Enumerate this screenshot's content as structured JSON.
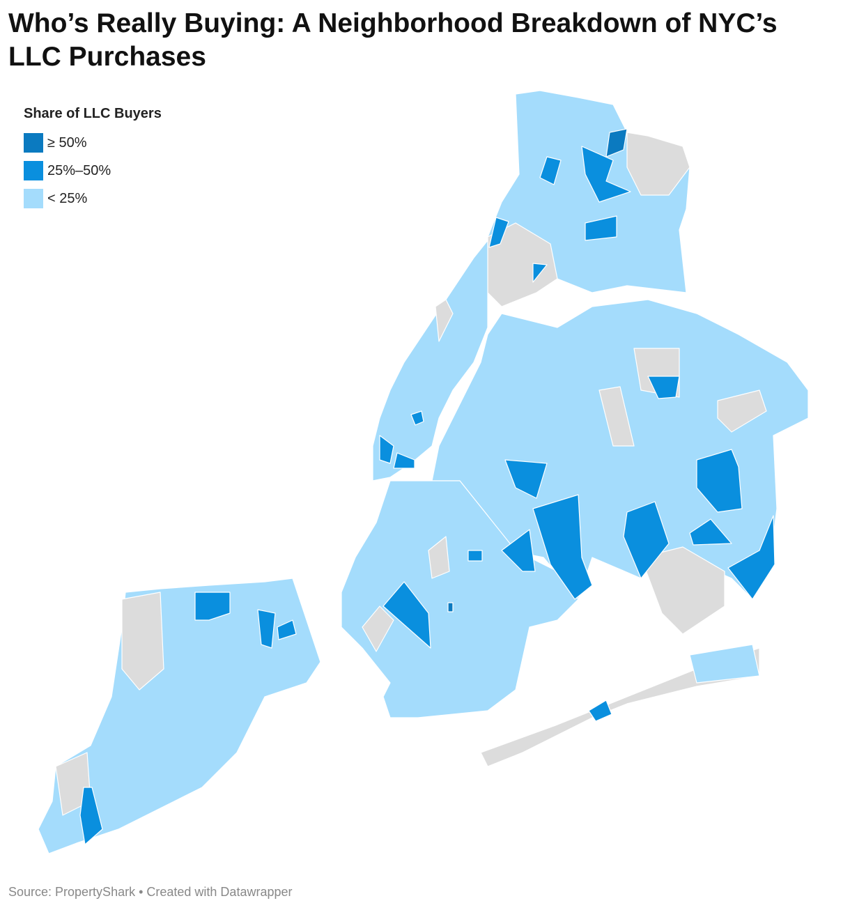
{
  "header": {
    "title": "Who’s Really Buying: A Neighborhood Breakdown of NYC’s LLC Purchases"
  },
  "legend": {
    "title": "Share of LLC Buyers",
    "items": [
      {
        "label": "≥ 50%",
        "color": "#0b7ac0"
      },
      {
        "label": "25%–50%",
        "color": "#0a8fde"
      },
      {
        "label": "< 25%",
        "color": "#a4dcfc"
      }
    ]
  },
  "footer": {
    "source": "Source: PropertyShark • Created with Datawrapper"
  }
}
